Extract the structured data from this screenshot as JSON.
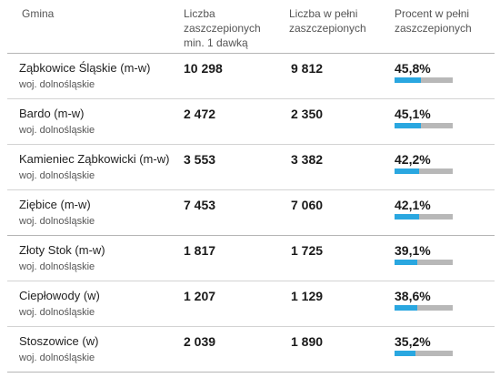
{
  "header": {
    "col_gmina": "Gmina",
    "col_dose1": "Liczba zaszczepionych min. 1 dawką",
    "col_full": "Liczba w pełni zaszczepionych",
    "col_pct": "Procent w pełni zaszczepionych"
  },
  "colors": {
    "bar_fill": "#2aa7e0",
    "bar_track": "#b8b8b8"
  },
  "rows": [
    {
      "name": "Ząbkowice Śląskie (m-w)",
      "region": "woj. dolnośląskie",
      "dose1": "10 298",
      "full": "9 812",
      "pct": "45,8%",
      "pct_value": 45.8
    },
    {
      "name": "Bardo (m-w)",
      "region": "woj. dolnośląskie",
      "dose1": "2 472",
      "full": "2 350",
      "pct": "45,1%",
      "pct_value": 45.1
    },
    {
      "name": "Kamieniec Ząbkowicki (m-w)",
      "region": "woj. dolnośląskie",
      "dose1": "3 553",
      "full": "3 382",
      "pct": "42,2%",
      "pct_value": 42.2
    },
    {
      "name": "Ziębice (m-w)",
      "region": "woj. dolnośląskie",
      "dose1": "7 453",
      "full": "7 060",
      "pct": "42,1%",
      "pct_value": 42.1
    },
    {
      "name": "Złoty Stok (m-w)",
      "region": "woj. dolnośląskie",
      "dose1": "1 817",
      "full": "1 725",
      "pct": "39,1%",
      "pct_value": 39.1
    },
    {
      "name": "Ciepłowody (w)",
      "region": "woj. dolnośląskie",
      "dose1": "1 207",
      "full": "1 129",
      "pct": "38,6%",
      "pct_value": 38.6
    },
    {
      "name": "Stoszowice (w)",
      "region": "woj. dolnośląskie",
      "dose1": "2 039",
      "full": "1 890",
      "pct": "35,2%",
      "pct_value": 35.2
    }
  ]
}
